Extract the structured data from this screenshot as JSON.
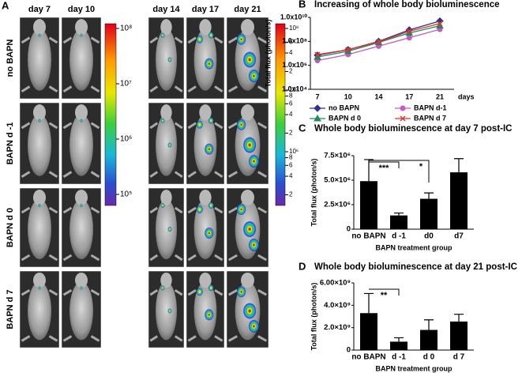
{
  "panel_a": {
    "label": "A",
    "days": [
      "day 7",
      "day 10",
      "day 14",
      "day 17",
      "day 21"
    ],
    "groups": [
      "no BAPN",
      "BAPN d -1",
      "BAPN d 0",
      "BAPN d 7"
    ],
    "colorbar_left": [
      "10⁸",
      "10⁷",
      "10⁶",
      "10⁵"
    ],
    "colorbar_right": [
      "10⁸",
      "6",
      "4",
      "2",
      "10⁷",
      "8",
      "6",
      "4",
      "2",
      "10⁶",
      "8",
      "6",
      "4",
      "2"
    ]
  },
  "chart_data": [
    {
      "type": "line",
      "panel": "B",
      "title": "Increasing of whole body bioluminescence",
      "ylabel": "Total flux (photon/s)",
      "xlabel": "days",
      "categories": [
        "7",
        "10",
        "14",
        "17",
        "21"
      ],
      "log_scale": true,
      "ylim": [
        10000,
        10000000000
      ],
      "yticks": [
        {
          "value": 10000,
          "label": "1.0x10⁴"
        },
        {
          "value": 1000000,
          "label": "1.0x10⁶"
        },
        {
          "value": 100000000,
          "label": "1.0x10⁸"
        },
        {
          "value": 10000000000,
          "label": "1.0x10¹⁰"
        }
      ],
      "legend": "bottom",
      "series": [
        {
          "name": "no BAPN",
          "color": "#2e3192",
          "marker": "diamond",
          "values": [
            7000000,
            20000000,
            100000000,
            900000000,
            5000000000
          ]
        },
        {
          "name": "BAPN d-1",
          "color": "#c45ac8",
          "marker": "circle",
          "values": [
            2500000,
            8000000,
            40000000,
            200000000,
            1000000000
          ]
        },
        {
          "name": "BAPN d 0",
          "color": "#1f8a5a",
          "marker": "triangle",
          "values": [
            5000000,
            15000000,
            80000000,
            500000000,
            2000000000
          ]
        },
        {
          "name": "BAPN d 7",
          "color": "#e0332a",
          "marker": "x",
          "values": [
            8000000,
            20000000,
            90000000,
            700000000,
            3000000000
          ]
        }
      ]
    },
    {
      "type": "bar",
      "panel": "C",
      "title": "Whole body bioluminescence at day 7 post-IC",
      "ylabel": "Total flux (photon/s)",
      "xlabel": "BAPN treatment group",
      "categories": [
        "no BAPN",
        "d -1",
        "d0",
        "d7"
      ],
      "values": [
        4900000,
        1400000,
        3100000,
        5800000
      ],
      "errors": [
        2200000,
        250000,
        600000,
        1400000
      ],
      "color": "#000000",
      "ylim": [
        0,
        7500000
      ],
      "yticks": [
        0,
        {
          "value": 2500000,
          "label": "2.5×10⁶"
        },
        {
          "value": 5000000,
          "label": "5.0×10⁶"
        },
        {
          "value": 7500000,
          "label": "7.5×10⁶"
        }
      ],
      "annotations": [
        "***",
        "*"
      ]
    },
    {
      "type": "bar",
      "panel": "D",
      "title": "Whole body bioluminescence at day 21 post-IC",
      "ylabel": "Total flux (photon/s)",
      "xlabel": "BAPN treatment group",
      "categories": [
        "no BAPN",
        "d -1",
        "d 0",
        "d 7"
      ],
      "values": [
        3300000000,
        750000000,
        1800000000,
        2550000000
      ],
      "errors": [
        1750000000,
        350000000,
        900000000,
        650000000
      ],
      "color": "#000000",
      "ylim": [
        0,
        6000000000
      ],
      "yticks": [
        0,
        {
          "value": 2000000000,
          "label": "2.0×10⁹"
        },
        {
          "value": 4000000000,
          "label": "4.0×10⁹"
        },
        {
          "value": 6000000000,
          "label": "6.00×10⁹"
        }
      ],
      "annotations": [
        "**"
      ]
    }
  ]
}
